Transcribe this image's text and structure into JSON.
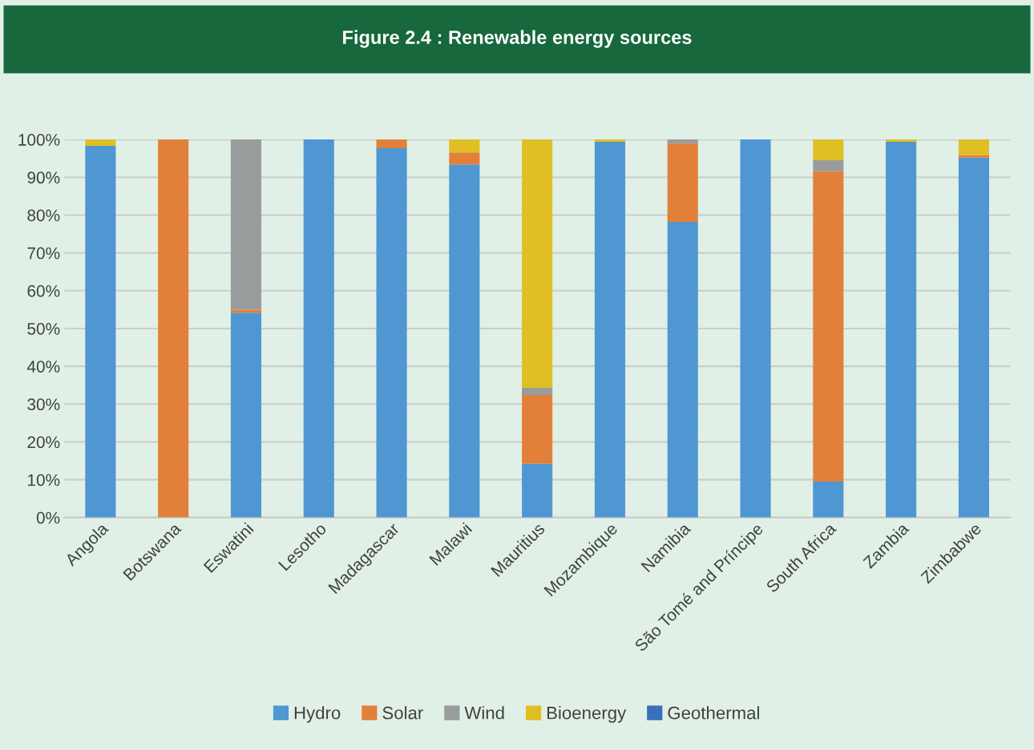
{
  "chart_data": {
    "type": "bar",
    "title": "Figure 2.4 : Renewable energy sources",
    "stacked": true,
    "categories": [
      "Angola",
      "Botswana",
      "Eswatini",
      "Lesotho",
      "Madagascar",
      "Malawi",
      "Mauritius",
      "Mozambique",
      "Namibia",
      "São Tomé and Príncipe",
      "South Africa",
      "Zambia",
      "Zimbabwe"
    ],
    "series": [
      {
        "name": "Hydro",
        "color": "#4f97d3",
        "values": [
          98.3,
          0,
          54.2,
          100,
          97.7,
          93.4,
          14.2,
          99.4,
          78.2,
          100,
          9.5,
          99.4,
          95.2
        ]
      },
      {
        "name": "Solar",
        "color": "#e2803a",
        "values": [
          0,
          100,
          0.8,
          0,
          2.3,
          3.2,
          18.2,
          0,
          20.8,
          0,
          82.1,
          0,
          0.7
        ]
      },
      {
        "name": "Wind",
        "color": "#999c9c",
        "values": [
          0,
          0,
          45.0,
          0,
          0,
          0,
          1.9,
          0,
          1.0,
          0,
          2.9,
          0,
          0
        ]
      },
      {
        "name": "Bioenergy",
        "color": "#e0bf25",
        "values": [
          1.7,
          0,
          0,
          0,
          0,
          3.4,
          65.7,
          0.6,
          0,
          0,
          5.5,
          0.6,
          4.1
        ]
      },
      {
        "name": "Geothermal",
        "color": "#3a6fbd",
        "values": [
          0,
          0,
          0,
          0,
          0,
          0,
          0,
          0,
          0,
          0,
          0,
          0,
          0
        ]
      }
    ],
    "ylim": [
      0,
      100
    ],
    "yticks": [
      {
        "value": 0,
        "label": "0%"
      },
      {
        "value": 10,
        "label": "10%"
      },
      {
        "value": 20,
        "label": "20%"
      },
      {
        "value": 30,
        "label": "30%"
      },
      {
        "value": 40,
        "label": "40%"
      },
      {
        "value": 50,
        "label": "50%"
      },
      {
        "value": 60,
        "label": "60%"
      },
      {
        "value": 70,
        "label": "70%"
      },
      {
        "value": 80,
        "label": "80%"
      },
      {
        "value": 90,
        "label": "90%"
      },
      {
        "value": 100,
        "label": "100%"
      }
    ],
    "grid": "y",
    "legend": "bottom"
  }
}
